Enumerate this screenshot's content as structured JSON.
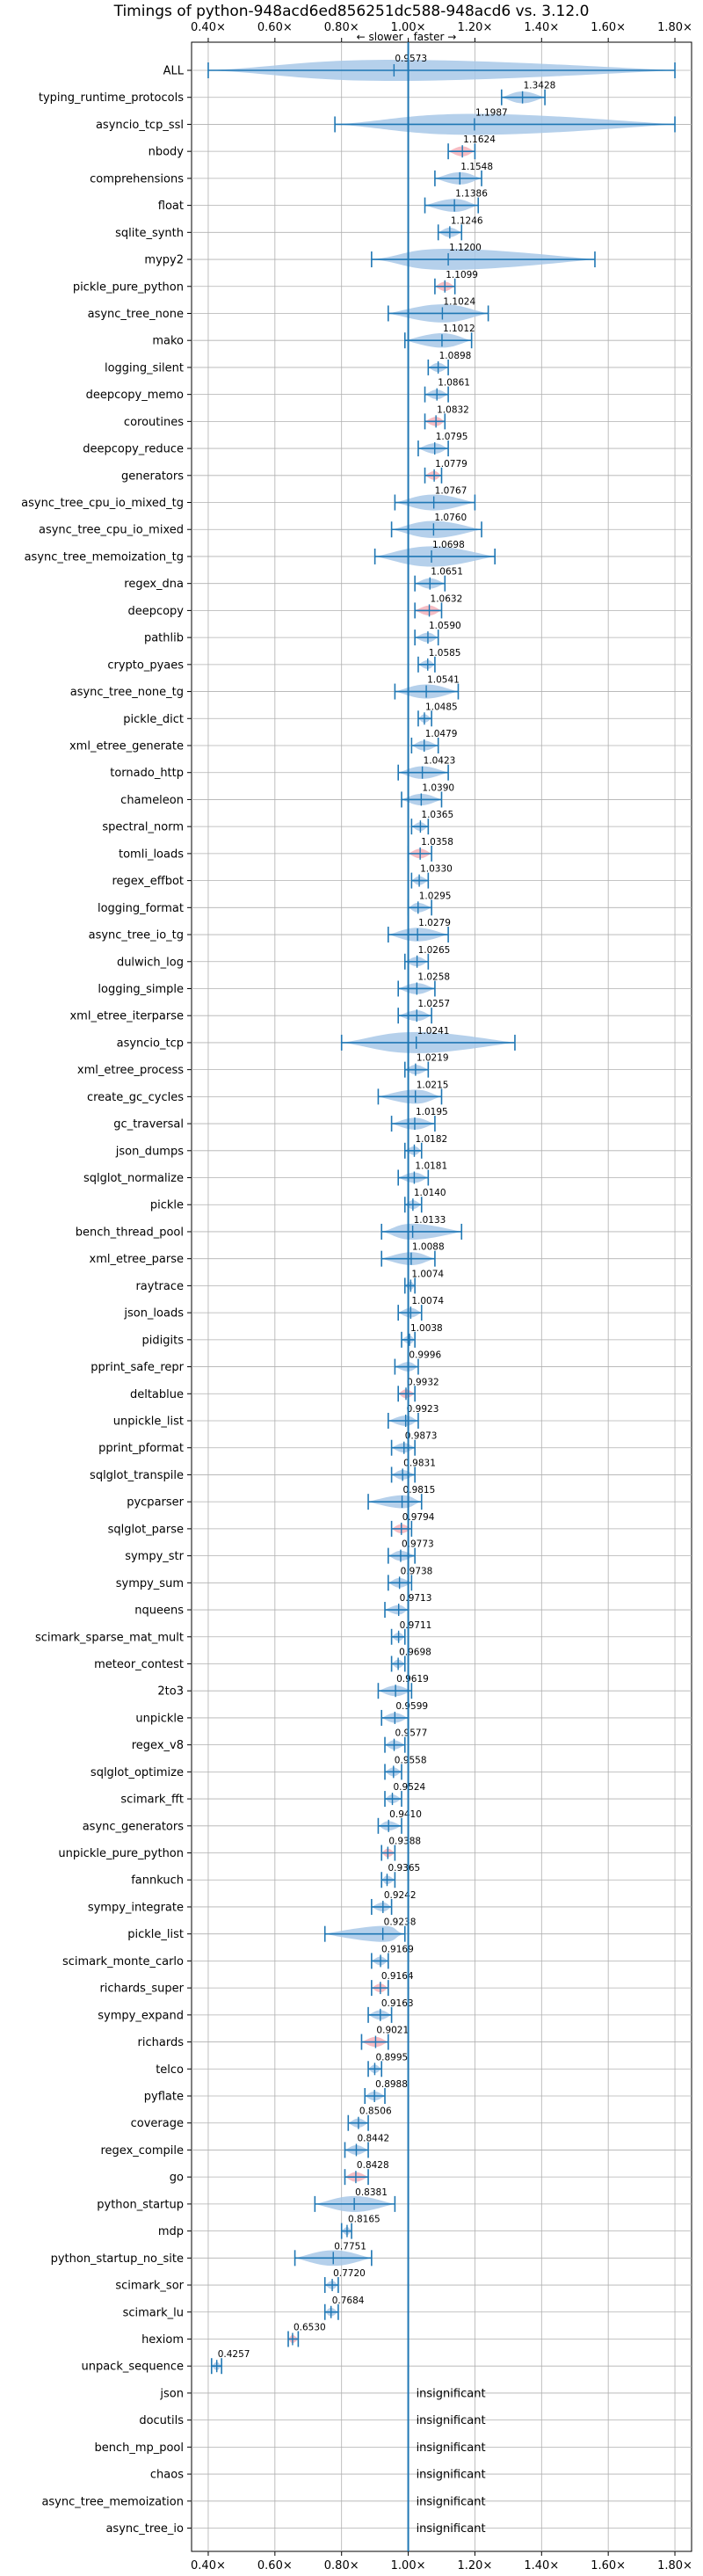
{
  "chart_data": {
    "type": "violin",
    "title": "Timings of python-948acd6ed856251dc588-948acd6 vs. 3.12.0",
    "direction_labels": {
      "slower": "← slower",
      "faster": "faster →"
    },
    "xlim": [
      0.35,
      1.85
    ],
    "x_ticks": [
      0.4,
      0.6,
      0.8,
      1.0,
      1.2,
      1.4,
      1.6,
      1.8
    ],
    "x_tick_labels": [
      "0.40×",
      "0.60×",
      "0.80×",
      "1.00×",
      "1.20×",
      "1.40×",
      "1.60×",
      "1.80×"
    ],
    "reference_line": 1.0,
    "grid": true,
    "colors": {
      "violin": "#a8c8e8",
      "significant_violin": "#f4b0b8",
      "whisker": "#1f77b4",
      "reference": "#1f77b4"
    },
    "insignificant_label": "insignificant",
    "benchmarks": [
      {
        "name": "ALL",
        "value": 0.9573,
        "min": 0.4,
        "max": 1.8,
        "highlight": false,
        "significant": true
      },
      {
        "name": "typing_runtime_protocols",
        "value": 1.3428,
        "min": 1.28,
        "max": 1.41,
        "highlight": false,
        "significant": true
      },
      {
        "name": "asyncio_tcp_ssl",
        "value": 1.1987,
        "min": 0.78,
        "max": 1.8,
        "highlight": false,
        "significant": true
      },
      {
        "name": "nbody",
        "value": 1.1624,
        "min": 1.12,
        "max": 1.2,
        "highlight": true,
        "significant": true
      },
      {
        "name": "comprehensions",
        "value": 1.1548,
        "min": 1.08,
        "max": 1.22,
        "highlight": false,
        "significant": true
      },
      {
        "name": "float",
        "value": 1.1386,
        "min": 1.05,
        "max": 1.21,
        "highlight": false,
        "significant": true
      },
      {
        "name": "sqlite_synth",
        "value": 1.1246,
        "min": 1.09,
        "max": 1.16,
        "highlight": false,
        "significant": true
      },
      {
        "name": "mypy2",
        "value": 1.12,
        "min": 0.89,
        "max": 1.56,
        "highlight": false,
        "significant": true
      },
      {
        "name": "pickle_pure_python",
        "value": 1.1099,
        "min": 1.08,
        "max": 1.14,
        "highlight": true,
        "significant": true
      },
      {
        "name": "async_tree_none",
        "value": 1.1024,
        "min": 0.94,
        "max": 1.24,
        "highlight": false,
        "significant": true
      },
      {
        "name": "mako",
        "value": 1.1012,
        "min": 0.99,
        "max": 1.19,
        "highlight": false,
        "significant": true
      },
      {
        "name": "logging_silent",
        "value": 1.0898,
        "min": 1.06,
        "max": 1.12,
        "highlight": false,
        "significant": true
      },
      {
        "name": "deepcopy_memo",
        "value": 1.0861,
        "min": 1.05,
        "max": 1.12,
        "highlight": false,
        "significant": true
      },
      {
        "name": "coroutines",
        "value": 1.0832,
        "min": 1.05,
        "max": 1.11,
        "highlight": true,
        "significant": true
      },
      {
        "name": "deepcopy_reduce",
        "value": 1.0795,
        "min": 1.03,
        "max": 1.12,
        "highlight": false,
        "significant": true
      },
      {
        "name": "generators",
        "value": 1.0779,
        "min": 1.05,
        "max": 1.1,
        "highlight": true,
        "significant": true
      },
      {
        "name": "async_tree_cpu_io_mixed_tg",
        "value": 1.0767,
        "min": 0.96,
        "max": 1.2,
        "highlight": false,
        "significant": true
      },
      {
        "name": "async_tree_cpu_io_mixed",
        "value": 1.076,
        "min": 0.95,
        "max": 1.22,
        "highlight": false,
        "significant": true
      },
      {
        "name": "async_tree_memoization_tg",
        "value": 1.0698,
        "min": 0.9,
        "max": 1.26,
        "highlight": false,
        "significant": true
      },
      {
        "name": "regex_dna",
        "value": 1.0651,
        "min": 1.02,
        "max": 1.11,
        "highlight": false,
        "significant": true
      },
      {
        "name": "deepcopy",
        "value": 1.0632,
        "min": 1.02,
        "max": 1.1,
        "highlight": true,
        "significant": true
      },
      {
        "name": "pathlib",
        "value": 1.059,
        "min": 1.02,
        "max": 1.09,
        "highlight": false,
        "significant": true
      },
      {
        "name": "crypto_pyaes",
        "value": 1.0585,
        "min": 1.03,
        "max": 1.08,
        "highlight": false,
        "significant": true
      },
      {
        "name": "async_tree_none_tg",
        "value": 1.0541,
        "min": 0.96,
        "max": 1.15,
        "highlight": false,
        "significant": true
      },
      {
        "name": "pickle_dict",
        "value": 1.0485,
        "min": 1.03,
        "max": 1.07,
        "highlight": false,
        "significant": true
      },
      {
        "name": "xml_etree_generate",
        "value": 1.0479,
        "min": 1.01,
        "max": 1.09,
        "highlight": false,
        "significant": true
      },
      {
        "name": "tornado_http",
        "value": 1.0423,
        "min": 0.97,
        "max": 1.12,
        "highlight": false,
        "significant": true
      },
      {
        "name": "chameleon",
        "value": 1.039,
        "min": 0.98,
        "max": 1.1,
        "highlight": false,
        "significant": true
      },
      {
        "name": "spectral_norm",
        "value": 1.0365,
        "min": 1.01,
        "max": 1.06,
        "highlight": false,
        "significant": true
      },
      {
        "name": "tomli_loads",
        "value": 1.0358,
        "min": 1.0,
        "max": 1.07,
        "highlight": true,
        "significant": true
      },
      {
        "name": "regex_effbot",
        "value": 1.033,
        "min": 1.01,
        "max": 1.06,
        "highlight": false,
        "significant": true
      },
      {
        "name": "logging_format",
        "value": 1.0295,
        "min": 1.0,
        "max": 1.07,
        "highlight": false,
        "significant": true
      },
      {
        "name": "async_tree_io_tg",
        "value": 1.0279,
        "min": 0.94,
        "max": 1.12,
        "highlight": false,
        "significant": true
      },
      {
        "name": "dulwich_log",
        "value": 1.0265,
        "min": 0.99,
        "max": 1.06,
        "highlight": false,
        "significant": true
      },
      {
        "name": "logging_simple",
        "value": 1.0258,
        "min": 0.97,
        "max": 1.08,
        "highlight": false,
        "significant": true
      },
      {
        "name": "xml_etree_iterparse",
        "value": 1.0257,
        "min": 0.97,
        "max": 1.07,
        "highlight": false,
        "significant": true
      },
      {
        "name": "asyncio_tcp",
        "value": 1.0241,
        "min": 0.8,
        "max": 1.32,
        "highlight": false,
        "significant": true
      },
      {
        "name": "xml_etree_process",
        "value": 1.0219,
        "min": 0.99,
        "max": 1.06,
        "highlight": false,
        "significant": true
      },
      {
        "name": "create_gc_cycles",
        "value": 1.0215,
        "min": 0.91,
        "max": 1.1,
        "highlight": false,
        "significant": true
      },
      {
        "name": "gc_traversal",
        "value": 1.0195,
        "min": 0.95,
        "max": 1.08,
        "highlight": false,
        "significant": true
      },
      {
        "name": "json_dumps",
        "value": 1.0182,
        "min": 0.99,
        "max": 1.04,
        "highlight": false,
        "significant": true
      },
      {
        "name": "sqlglot_normalize",
        "value": 1.0181,
        "min": 0.97,
        "max": 1.06,
        "highlight": false,
        "significant": true
      },
      {
        "name": "pickle",
        "value": 1.014,
        "min": 0.99,
        "max": 1.04,
        "highlight": false,
        "significant": true
      },
      {
        "name": "bench_thread_pool",
        "value": 1.0133,
        "min": 0.92,
        "max": 1.16,
        "highlight": false,
        "significant": true
      },
      {
        "name": "xml_etree_parse",
        "value": 1.0088,
        "min": 0.92,
        "max": 1.08,
        "highlight": false,
        "significant": true
      },
      {
        "name": "raytrace",
        "value": 1.0074,
        "min": 0.99,
        "max": 1.02,
        "highlight": false,
        "significant": true
      },
      {
        "name": "json_loads",
        "value": 1.0074,
        "min": 0.97,
        "max": 1.04,
        "highlight": false,
        "significant": true
      },
      {
        "name": "pidigits",
        "value": 1.0038,
        "min": 0.98,
        "max": 1.02,
        "highlight": false,
        "significant": true
      },
      {
        "name": "pprint_safe_repr",
        "value": 0.9996,
        "min": 0.96,
        "max": 1.03,
        "highlight": false,
        "significant": true
      },
      {
        "name": "deltablue",
        "value": 0.9932,
        "min": 0.97,
        "max": 1.02,
        "highlight": true,
        "significant": true
      },
      {
        "name": "unpickle_list",
        "value": 0.9923,
        "min": 0.94,
        "max": 1.03,
        "highlight": false,
        "significant": true
      },
      {
        "name": "pprint_pformat",
        "value": 0.9873,
        "min": 0.95,
        "max": 1.02,
        "highlight": false,
        "significant": true
      },
      {
        "name": "sqlglot_transpile",
        "value": 0.9831,
        "min": 0.95,
        "max": 1.02,
        "highlight": false,
        "significant": true
      },
      {
        "name": "pycparser",
        "value": 0.9815,
        "min": 0.88,
        "max": 1.04,
        "highlight": false,
        "significant": true
      },
      {
        "name": "sqlglot_parse",
        "value": 0.9794,
        "min": 0.95,
        "max": 1.01,
        "highlight": true,
        "significant": true
      },
      {
        "name": "sympy_str",
        "value": 0.9773,
        "min": 0.94,
        "max": 1.02,
        "highlight": false,
        "significant": true
      },
      {
        "name": "sympy_sum",
        "value": 0.9738,
        "min": 0.94,
        "max": 1.01,
        "highlight": false,
        "significant": true
      },
      {
        "name": "nqueens",
        "value": 0.9713,
        "min": 0.93,
        "max": 1.0,
        "highlight": false,
        "significant": true
      },
      {
        "name": "scimark_sparse_mat_mult",
        "value": 0.9711,
        "min": 0.95,
        "max": 0.99,
        "highlight": false,
        "significant": true
      },
      {
        "name": "meteor_contest",
        "value": 0.9698,
        "min": 0.95,
        "max": 0.99,
        "highlight": false,
        "significant": true
      },
      {
        "name": "2to3",
        "value": 0.9619,
        "min": 0.91,
        "max": 1.01,
        "highlight": false,
        "significant": true
      },
      {
        "name": "unpickle",
        "value": 0.9599,
        "min": 0.92,
        "max": 1.0,
        "highlight": false,
        "significant": true
      },
      {
        "name": "regex_v8",
        "value": 0.9577,
        "min": 0.93,
        "max": 0.99,
        "highlight": false,
        "significant": true
      },
      {
        "name": "sqlglot_optimize",
        "value": 0.9558,
        "min": 0.93,
        "max": 0.98,
        "highlight": false,
        "significant": true
      },
      {
        "name": "scimark_fft",
        "value": 0.9524,
        "min": 0.93,
        "max": 0.98,
        "highlight": false,
        "significant": true
      },
      {
        "name": "async_generators",
        "value": 0.941,
        "min": 0.91,
        "max": 0.98,
        "highlight": false,
        "significant": true
      },
      {
        "name": "unpickle_pure_python",
        "value": 0.9388,
        "min": 0.92,
        "max": 0.96,
        "highlight": true,
        "significant": true
      },
      {
        "name": "fannkuch",
        "value": 0.9365,
        "min": 0.92,
        "max": 0.96,
        "highlight": false,
        "significant": true
      },
      {
        "name": "sympy_integrate",
        "value": 0.9242,
        "min": 0.89,
        "max": 0.95,
        "highlight": false,
        "significant": true
      },
      {
        "name": "pickle_list",
        "value": 0.9238,
        "min": 0.75,
        "max": 0.99,
        "highlight": false,
        "significant": true
      },
      {
        "name": "scimark_monte_carlo",
        "value": 0.9169,
        "min": 0.89,
        "max": 0.94,
        "highlight": false,
        "significant": true
      },
      {
        "name": "richards_super",
        "value": 0.9164,
        "min": 0.89,
        "max": 0.94,
        "highlight": true,
        "significant": true
      },
      {
        "name": "sympy_expand",
        "value": 0.9163,
        "min": 0.88,
        "max": 0.95,
        "highlight": false,
        "significant": true
      },
      {
        "name": "richards",
        "value": 0.9021,
        "min": 0.86,
        "max": 0.94,
        "highlight": true,
        "significant": true
      },
      {
        "name": "telco",
        "value": 0.8995,
        "min": 0.88,
        "max": 0.92,
        "highlight": false,
        "significant": true
      },
      {
        "name": "pyflate",
        "value": 0.8988,
        "min": 0.87,
        "max": 0.93,
        "highlight": false,
        "significant": true
      },
      {
        "name": "coverage",
        "value": 0.8506,
        "min": 0.82,
        "max": 0.88,
        "highlight": false,
        "significant": true
      },
      {
        "name": "regex_compile",
        "value": 0.8442,
        "min": 0.81,
        "max": 0.88,
        "highlight": false,
        "significant": true
      },
      {
        "name": "go",
        "value": 0.8428,
        "min": 0.81,
        "max": 0.88,
        "highlight": true,
        "significant": true
      },
      {
        "name": "python_startup",
        "value": 0.8381,
        "min": 0.72,
        "max": 0.96,
        "highlight": false,
        "significant": true
      },
      {
        "name": "mdp",
        "value": 0.8165,
        "min": 0.8,
        "max": 0.83,
        "highlight": false,
        "significant": true
      },
      {
        "name": "python_startup_no_site",
        "value": 0.7751,
        "min": 0.66,
        "max": 0.89,
        "highlight": false,
        "significant": true
      },
      {
        "name": "scimark_sor",
        "value": 0.772,
        "min": 0.75,
        "max": 0.79,
        "highlight": false,
        "significant": true
      },
      {
        "name": "scimark_lu",
        "value": 0.7684,
        "min": 0.75,
        "max": 0.79,
        "highlight": false,
        "significant": true
      },
      {
        "name": "hexiom",
        "value": 0.653,
        "min": 0.64,
        "max": 0.67,
        "highlight": true,
        "significant": true
      },
      {
        "name": "unpack_sequence",
        "value": 0.4257,
        "min": 0.41,
        "max": 0.44,
        "highlight": false,
        "significant": true
      },
      {
        "name": "json",
        "value": null,
        "highlight": false,
        "significant": false
      },
      {
        "name": "docutils",
        "value": null,
        "highlight": false,
        "significant": false
      },
      {
        "name": "bench_mp_pool",
        "value": null,
        "highlight": false,
        "significant": false
      },
      {
        "name": "chaos",
        "value": null,
        "highlight": false,
        "significant": false
      },
      {
        "name": "async_tree_memoization",
        "value": null,
        "highlight": false,
        "significant": false
      },
      {
        "name": "async_tree_io",
        "value": null,
        "highlight": false,
        "significant": false
      }
    ]
  }
}
